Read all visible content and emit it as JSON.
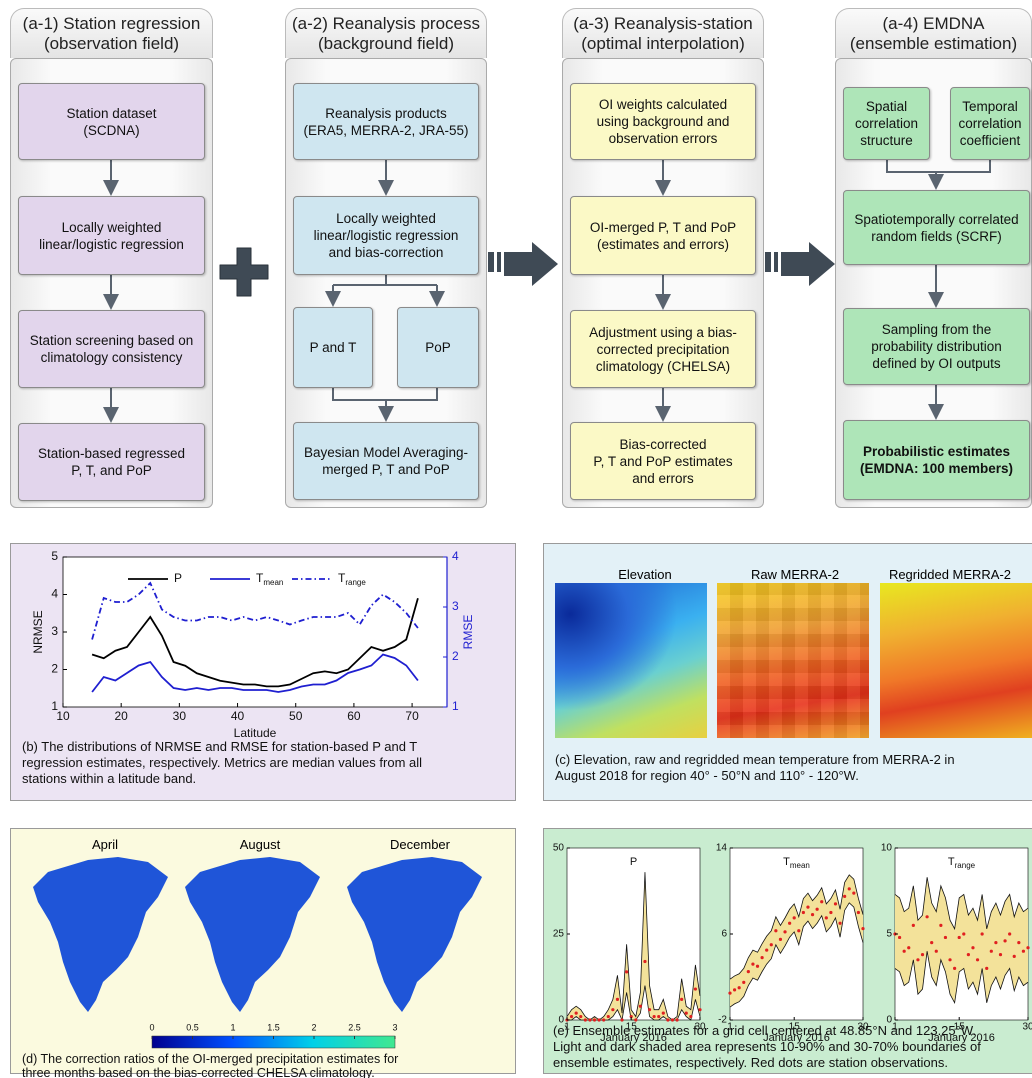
{
  "columns": [
    {
      "title": "(a-1) Station regression\n(observation field)",
      "color": "#e2d5ec",
      "boxes": [
        "Station dataset\n(SCDNA)",
        "Locally weighted\nlinear/logistic regression",
        "Station screening based on\nclimatology consistency",
        "Station-based regressed\nP, T, and PoP"
      ]
    },
    {
      "title": "(a-2) Reanalysis process\n(background field)",
      "color": "#cfe6f0",
      "boxes": [
        "Reanalysis products\n(ERA5, MERRA-2, JRA-55)",
        "Locally weighted\nlinear/logistic regression\nand bias-correction",
        "P and T",
        "PoP",
        "Bayesian Model Averaging-\nmerged P, T and PoP"
      ]
    },
    {
      "title": "(a-3) Reanalysis-station\n(optimal interpolation)",
      "color": "#fbf9c6",
      "boxes": [
        "OI weights calculated\nusing background and\nobservation errors",
        "OI-merged P, T and PoP\n(estimates and errors)",
        "Adjustment using a bias-\ncorrected precipitation\nclimatology (CHELSA)",
        "Bias-corrected\nP, T and PoP estimates\nand errors"
      ]
    },
    {
      "title": "(a-4) EMDNA\n(ensemble estimation)",
      "color": "#aee5b8",
      "boxes": [
        "Spatial\ncorrelation\nstructure",
        "Temporal\ncorrelation\ncoefficient",
        "Spatiotemporally correlated\nrandom fields (SCRF)",
        "Sampling from the\nprobability distribution\ndefined by OI outputs",
        "Probabilistic estimates\n(EMDNA: 100 members)"
      ]
    }
  ],
  "chart_data": [
    {
      "type": "line",
      "xlabel": "Latitude",
      "ylabel": "NRMSE",
      "y2label": "RMSE",
      "caption": "(b) The distributions of NRMSE and RMSE for station-based P and T\nregression estimates, respectively. Metrics are median values from all\nstations within a latitude band.",
      "xlim": [
        10,
        76
      ],
      "xticks": [
        10,
        20,
        30,
        40,
        50,
        60,
        70
      ],
      "ylim": [
        1,
        5
      ],
      "yticks": [
        1,
        2,
        3,
        4,
        5
      ],
      "y2lim": [
        1,
        4
      ],
      "y2ticks": [
        1,
        2,
        3,
        4
      ],
      "y2color": "#1f1fd0",
      "legend": "top",
      "x": [
        15,
        17,
        19,
        21,
        23,
        25,
        27,
        29,
        31,
        33,
        35,
        37,
        39,
        41,
        43,
        45,
        47,
        49,
        51,
        53,
        55,
        57,
        59,
        61,
        63,
        65,
        67,
        69,
        71
      ],
      "series": [
        {
          "name": "P",
          "color": "#000000",
          "dash": "solid",
          "values": [
            2.4,
            2.3,
            2.5,
            2.6,
            3.0,
            3.4,
            2.9,
            2.2,
            2.1,
            1.9,
            1.8,
            1.7,
            1.65,
            1.6,
            1.6,
            1.55,
            1.55,
            1.6,
            1.75,
            1.9,
            1.95,
            1.9,
            2.0,
            2.3,
            2.6,
            2.5,
            2.6,
            2.8,
            3.9
          ]
        },
        {
          "name": "Tmean",
          "color": "#1f1fd0",
          "dash": "solid",
          "axis": "y2",
          "values": [
            1.3,
            1.6,
            1.53,
            1.68,
            1.83,
            1.9,
            1.6,
            1.38,
            1.34,
            1.38,
            1.34,
            1.38,
            1.38,
            1.34,
            1.34,
            1.34,
            1.3,
            1.34,
            1.41,
            1.45,
            1.45,
            1.53,
            1.68,
            1.75,
            1.83,
            2.05,
            1.98,
            1.83,
            1.53
          ]
        },
        {
          "name": "Trange",
          "color": "#1f1fd0",
          "dash": "dashdot",
          "axis": "y2",
          "values": [
            2.35,
            3.18,
            3.1,
            3.1,
            3.25,
            3.48,
            2.95,
            2.8,
            2.73,
            2.73,
            2.8,
            2.8,
            2.73,
            2.8,
            2.73,
            2.8,
            2.73,
            2.65,
            2.73,
            2.8,
            2.8,
            2.8,
            2.88,
            2.65,
            3.03,
            3.25,
            3.1,
            2.88,
            2.58
          ]
        }
      ]
    },
    {
      "type": "band",
      "title": "P",
      "xlabel": "January 2016",
      "xlim": [
        1,
        30
      ],
      "xticks": [
        1,
        15,
        30
      ],
      "ylim": [
        0,
        50
      ],
      "yticks": [
        0,
        25,
        50
      ],
      "band_color": "#f3e29a",
      "dot_color": "#e02020",
      "x": [
        1,
        2,
        3,
        4,
        5,
        6,
        7,
        8,
        9,
        10,
        11,
        12,
        13,
        14,
        15,
        16,
        17,
        18,
        19,
        20,
        21,
        22,
        23,
        24,
        25,
        26,
        27,
        28,
        29,
        30
      ],
      "lower": [
        0,
        0,
        1,
        0,
        0,
        0,
        0,
        0,
        0,
        0,
        1,
        3,
        0,
        8,
        0,
        0,
        2,
        10,
        1,
        0,
        0,
        1,
        0,
        0,
        0,
        3,
        1,
        0,
        6,
        1
      ],
      "upper": [
        1,
        3,
        4,
        3,
        1,
        0,
        1,
        0,
        1,
        3,
        6,
        13,
        2,
        22,
        3,
        1,
        8,
        43,
        10,
        3,
        3,
        6,
        1,
        0,
        1,
        12,
        4,
        3,
        16,
        7
      ],
      "obs": [
        0,
        1,
        2,
        1,
        0,
        0,
        0,
        0,
        0,
        1,
        3,
        6,
        0,
        14,
        1,
        0,
        4,
        17,
        3,
        1,
        1,
        2,
        0,
        0,
        0,
        6,
        2,
        1,
        9,
        3
      ]
    },
    {
      "type": "band",
      "title": "Tmean",
      "xlabel": "January 2016",
      "xlim": [
        1,
        30
      ],
      "xticks": [
        1,
        15,
        30
      ],
      "ylim": [
        -2,
        14
      ],
      "yticks": [
        -2,
        6,
        14
      ],
      "band_color": "#f3e29a",
      "dot_color": "#e02020",
      "x": [
        1,
        2,
        3,
        4,
        5,
        6,
        7,
        8,
        9,
        10,
        11,
        12,
        13,
        14,
        15,
        16,
        17,
        18,
        19,
        20,
        21,
        22,
        23,
        24,
        25,
        26,
        27,
        28,
        29,
        30
      ],
      "lower": [
        -0.8,
        -0.5,
        -0.3,
        0.2,
        1.2,
        1.9,
        1.7,
        2.5,
        3.2,
        3.7,
        5.0,
        4.2,
        4.9,
        5.7,
        6.2,
        5.0,
        6.7,
        7.2,
        6.5,
        7.0,
        7.7,
        6.2,
        6.7,
        7.5,
        5.7,
        8.2,
        8.9,
        8.5,
        6.7,
        5.2
      ],
      "upper": [
        1.8,
        2.1,
        2.3,
        2.8,
        3.8,
        4.5,
        4.3,
        5.1,
        5.8,
        6.3,
        7.6,
        6.8,
        7.5,
        8.3,
        8.8,
        7.6,
        9.3,
        9.8,
        9.1,
        9.6,
        10.3,
        8.8,
        9.3,
        10.1,
        8.3,
        10.8,
        11.5,
        11.1,
        9.3,
        7.8
      ],
      "obs": [
        0.5,
        0.8,
        1.0,
        1.5,
        2.5,
        3.2,
        3.0,
        3.8,
        4.5,
        5.0,
        6.3,
        5.5,
        6.2,
        7.0,
        7.5,
        6.3,
        8.0,
        8.5,
        7.8,
        8.3,
        9.0,
        7.5,
        8.0,
        8.8,
        7.0,
        9.5,
        10.2,
        9.8,
        8.0,
        6.5
      ]
    },
    {
      "type": "band",
      "title": "Trange",
      "xlabel": "January 2016",
      "xlim": [
        1,
        30
      ],
      "xticks": [
        1,
        15,
        30
      ],
      "ylim": [
        0,
        10
      ],
      "yticks": [
        0,
        5,
        10
      ],
      "band_color": "#f3e29a",
      "dot_color": "#e02020",
      "x": [
        1,
        2,
        3,
        4,
        5,
        6,
        7,
        8,
        9,
        10,
        11,
        12,
        13,
        14,
        15,
        16,
        17,
        18,
        19,
        20,
        21,
        22,
        23,
        24,
        25,
        26,
        27,
        28,
        29,
        30
      ],
      "lower": [
        3.0,
        2.8,
        2.0,
        2.2,
        3.5,
        1.5,
        1.8,
        4.0,
        2.5,
        2.0,
        3.5,
        2.8,
        1.5,
        1.0,
        2.8,
        3.0,
        1.8,
        2.2,
        1.5,
        3.0,
        1.0,
        2.0,
        2.5,
        1.8,
        2.6,
        3.0,
        1.7,
        2.5,
        2.0,
        2.2
      ],
      "upper": [
        7.3,
        7.1,
        6.3,
        6.5,
        7.8,
        5.8,
        6.1,
        8.3,
        6.8,
        6.3,
        7.8,
        7.1,
        5.8,
        5.3,
        7.1,
        7.3,
        6.1,
        6.5,
        5.8,
        7.3,
        5.3,
        6.3,
        6.8,
        6.1,
        6.9,
        7.3,
        6.0,
        6.8,
        6.3,
        6.5
      ],
      "obs": [
        5.0,
        4.8,
        4.0,
        4.2,
        5.5,
        3.5,
        3.8,
        6.0,
        4.5,
        4.0,
        5.5,
        4.8,
        3.5,
        3.0,
        4.8,
        5.0,
        3.8,
        4.2,
        3.5,
        5.0,
        3.0,
        4.0,
        4.5,
        3.8,
        4.6,
        5.0,
        3.7,
        4.5,
        4.0,
        4.2
      ]
    }
  ],
  "panel_c": {
    "labels": [
      "Elevation",
      "Raw MERRA-2",
      "Regridded MERRA-2"
    ],
    "caption": "(c) Elevation, raw and regridded mean temperature from MERRA-2 in\nAugust 2018 for region 40° - 50°N and 110° - 120°W."
  },
  "panel_d": {
    "months": [
      "April",
      "August",
      "December"
    ],
    "colorbar_lim": [
      0,
      3
    ],
    "colorbar_ticks": [
      0,
      0.5,
      1,
      1.5,
      2,
      2.5,
      3
    ],
    "caption": "(d) The correction ratios of the OI-merged precipitation estimates for\nthree months based on the bias-corrected CHELSA climatology."
  },
  "panel_e": {
    "caption": "(e) Ensemble estimates for a grid cell centered at 48.85°N and 123.25°W.\nLight and dark shaded area represents 10-90% and 30-70% boundaries of\nensemble estimates, respectively. Red dots are station observations."
  }
}
